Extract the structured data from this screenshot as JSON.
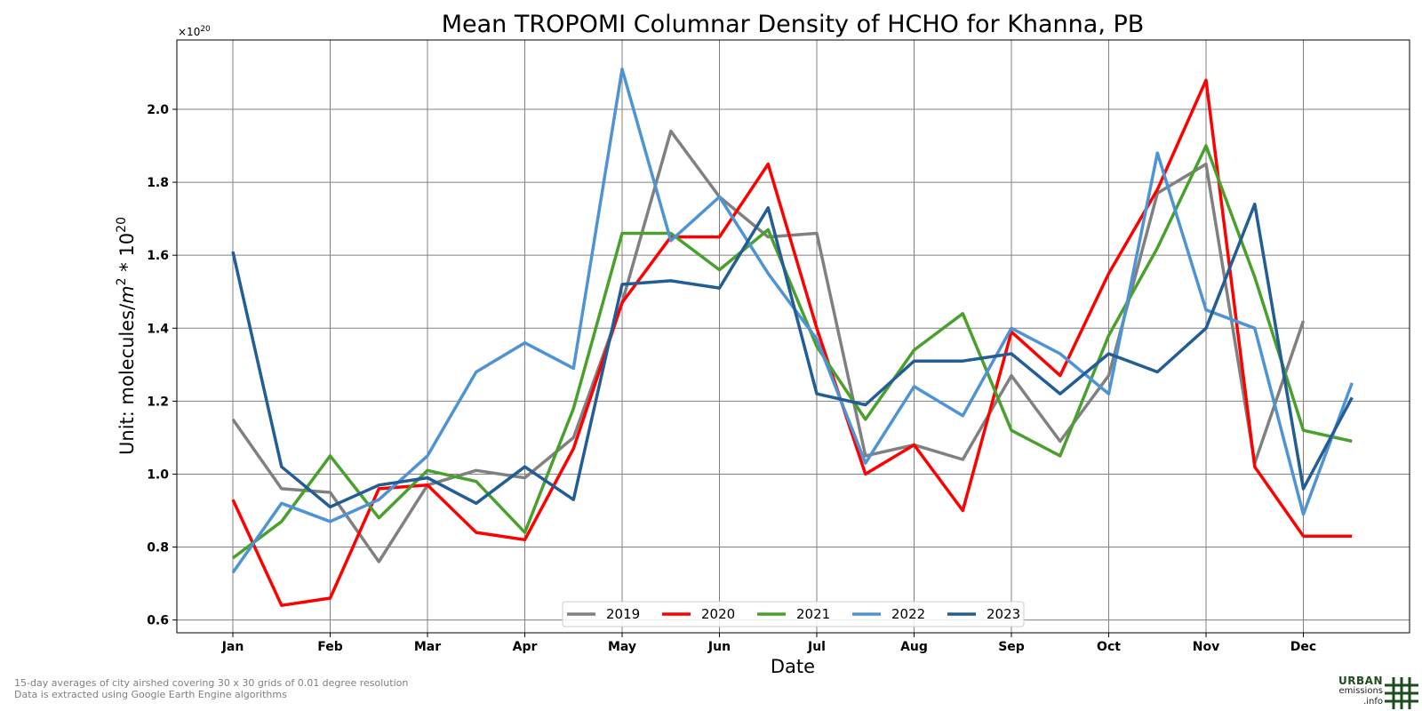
{
  "chart_data": {
    "type": "line",
    "title": "Mean TROPOMI Columnar Density of HCHO for Khanna, PB",
    "xlabel": "Date",
    "ylabel_prefix": "Unit: molecules/",
    "ylabel_unit_base": "m",
    "ylabel_unit_exp": "2",
    "ylabel_mult": " * 10",
    "ylabel_mult_exp": "20",
    "offset_base": "×10",
    "offset_exp": "20",
    "x_ticks": [
      "Jan",
      "Feb",
      "Mar",
      "Apr",
      "May",
      "Jun",
      "Jul",
      "Aug",
      "Sep",
      "Oct",
      "Nov",
      "Dec"
    ],
    "y_ticks": [
      "0.6",
      "0.8",
      "1.0",
      "1.2",
      "1.4",
      "1.6",
      "1.8",
      "2.0"
    ],
    "ylim": [
      0.565,
      2.19
    ],
    "grid": true,
    "legend_placement": "bottom-center",
    "x": [
      "01-Jan",
      "16-Jan",
      "01-Feb",
      "16-Feb",
      "01-Mar",
      "16-Mar",
      "01-Apr",
      "16-Apr",
      "01-May",
      "16-May",
      "01-Jun",
      "16-Jun",
      "01-Jul",
      "16-Jul",
      "01-Aug",
      "16-Aug",
      "01-Sep",
      "16-Sep",
      "01-Oct",
      "16-Oct",
      "01-Nov",
      "16-Nov",
      "01-Dec",
      "16-Dec"
    ],
    "series": [
      {
        "name": "2019",
        "color": "#808080",
        "values": [
          1.15,
          0.96,
          0.95,
          0.76,
          0.97,
          1.01,
          0.99,
          1.1,
          1.47,
          1.94,
          1.76,
          1.65,
          1.66,
          1.05,
          1.08,
          1.04,
          1.27,
          1.09,
          1.27,
          1.77,
          1.85,
          1.03,
          1.42,
          null
        ]
      },
      {
        "name": "2020",
        "color": "#ff0000",
        "values": [
          0.93,
          0.64,
          0.66,
          0.96,
          0.97,
          0.84,
          0.82,
          1.07,
          1.47,
          1.65,
          1.65,
          1.85,
          1.4,
          1.0,
          1.08,
          0.9,
          1.39,
          1.27,
          1.55,
          1.78,
          2.08,
          1.02,
          0.83,
          0.83
        ]
      },
      {
        "name": "2021",
        "color": "#4aa02c",
        "values": [
          0.77,
          0.87,
          1.05,
          0.88,
          1.01,
          0.98,
          0.84,
          1.18,
          1.66,
          1.66,
          1.56,
          1.67,
          1.35,
          1.15,
          1.34,
          1.44,
          1.12,
          1.05,
          1.38,
          1.62,
          1.9,
          1.54,
          1.12,
          1.09
        ]
      },
      {
        "name": "2022",
        "color": "#4e93d4",
        "values": [
          0.73,
          0.92,
          0.87,
          0.93,
          1.05,
          1.28,
          1.36,
          1.29,
          2.11,
          1.64,
          1.76,
          1.55,
          1.37,
          1.03,
          1.24,
          1.16,
          1.4,
          1.33,
          1.22,
          1.88,
          1.45,
          1.4,
          0.89,
          1.25
        ]
      },
      {
        "name": "2023",
        "color": "#225d96",
        "values": [
          1.61,
          1.02,
          0.91,
          0.97,
          0.99,
          0.92,
          1.02,
          0.93,
          1.52,
          1.53,
          1.51,
          1.73,
          1.22,
          1.19,
          1.31,
          1.31,
          1.33,
          1.22,
          1.33,
          1.28,
          1.4,
          1.74,
          0.96,
          1.21
        ]
      }
    ]
  },
  "footer": {
    "line1": "15-day averages of city airshed covering 30 x 30 grids of 0.01 degree resolution",
    "line2": "Data is extracted using Google Earth Engine algorithms"
  },
  "logo": {
    "line1": "URBAN",
    "line2": "emissions",
    "line3": ".info"
  }
}
